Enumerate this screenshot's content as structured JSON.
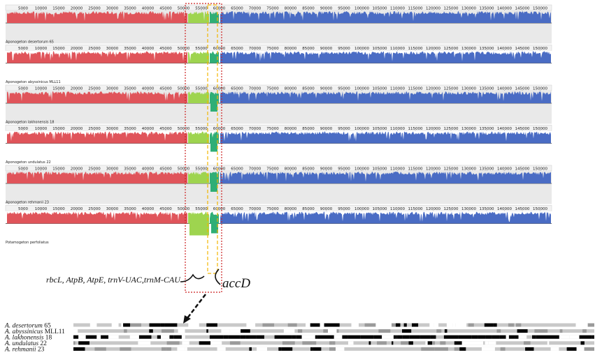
{
  "figure": {
    "colors": {
      "lcb_red": "#e0545a",
      "lcb_green": "#9ed44f",
      "lcb_teal": "#2fae76",
      "lcb_blue": "#4a6cc4",
      "panel_bg": "#e9e9e9",
      "ruler_bg": "#f2f2f2",
      "highlight_red": "#cc2222",
      "highlight_yellow": "#f2b600",
      "aln_black": "#000000",
      "aln_gray": "#c8c8c8"
    },
    "ruler_ticks": [
      "5000",
      "10000",
      "15000",
      "20000",
      "25000",
      "30000",
      "35000",
      "40000",
      "45000",
      "50000",
      "55000",
      "60000",
      "65000",
      "70000",
      "75000",
      "80000",
      "85000",
      "90000",
      "95000",
      "100000",
      "105000",
      "110000",
      "115000",
      "120000",
      "125000",
      "130000",
      "135000",
      "140000",
      "145000",
      "150000"
    ],
    "tracks": [
      {
        "name": "Aponogeton desertorum 65"
      },
      {
        "name": "Aponogeton abyssinicus MLL11"
      },
      {
        "name": "Aponogeton lakhonensis 18"
      },
      {
        "name": "Aponogeton undulatus 22"
      },
      {
        "name": "Aponogeton rehmanii 23"
      },
      {
        "name": "Potamogeton perfoliatus"
      }
    ],
    "annotations": {
      "genes_label": "rbcL, AtpB, AtpE, trnV-UAC,trnM-CAU",
      "accd_label": "accD"
    },
    "alignment": {
      "rows": [
        {
          "label_italic": "A. desertorum",
          "label_plain": " 65"
        },
        {
          "label_italic": "A. abyssinicus",
          "label_plain": " MLL11"
        },
        {
          "label_italic": "A. lakhonensis",
          "label_plain": " 18"
        },
        {
          "label_italic": "A. undulatus",
          "label_plain": " 22"
        },
        {
          "label_italic": "A. rehmanii",
          "label_plain": " 23"
        }
      ]
    }
  }
}
